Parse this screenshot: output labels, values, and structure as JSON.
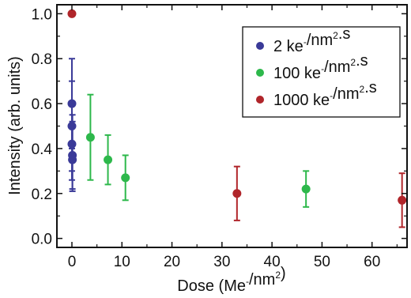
{
  "chart_data": {
    "type": "scatter",
    "xlabel": "Dose (Me⁻/nm²)",
    "ylabel": "Intensity (arb. units)",
    "xlim": [
      -3,
      67
    ],
    "ylim": [
      -0.04,
      1.04
    ],
    "xticks": [
      "0",
      "10",
      "20",
      "30",
      "40",
      "50",
      "60"
    ],
    "yticks": [
      "0.0",
      "0.2",
      "0.4",
      "0.6",
      "0.8",
      "1.0"
    ],
    "xtick_values": [
      0,
      10,
      20,
      30,
      40,
      50,
      60
    ],
    "ytick_values": [
      0.0,
      0.2,
      0.4,
      0.6,
      0.8,
      1.0
    ],
    "grid": false,
    "legend_position": "top-right",
    "series": [
      {
        "name": "2 ke⁻/nm².s",
        "color": "#3a3a98",
        "points": [
          {
            "x": 0.0,
            "y": 0.6,
            "err_low": 0.4,
            "err_high": 0.8
          },
          {
            "x": 0.0,
            "y": 0.5,
            "err_low": 0.3,
            "err_high": 0.7
          },
          {
            "x": 0.0,
            "y": 0.42,
            "err_low": 0.26,
            "err_high": 0.6
          },
          {
            "x": 0.1,
            "y": 0.37,
            "err_low": 0.22,
            "err_high": 0.55
          },
          {
            "x": 0.1,
            "y": 0.35,
            "err_low": 0.21,
            "err_high": 0.52
          }
        ]
      },
      {
        "name": "100 ke⁻/nm².s",
        "color": "#2db84b",
        "points": [
          {
            "x": 3.7,
            "y": 0.45,
            "err_low": 0.26,
            "err_high": 0.64
          },
          {
            "x": 7.2,
            "y": 0.35,
            "err_low": 0.24,
            "err_high": 0.46
          },
          {
            "x": 10.7,
            "y": 0.27,
            "err_low": 0.17,
            "err_high": 0.37
          },
          {
            "x": 46.8,
            "y": 0.22,
            "err_low": 0.14,
            "err_high": 0.3
          }
        ]
      },
      {
        "name": "1000 ke⁻/nm².s",
        "color": "#b0252a",
        "points": [
          {
            "x": 0.0,
            "y": 1.0,
            "err_low": 1.0,
            "err_high": 1.0
          },
          {
            "x": 33.0,
            "y": 0.2,
            "err_low": 0.08,
            "err_high": 0.32
          },
          {
            "x": 66.0,
            "y": 0.17,
            "err_low": 0.05,
            "err_high": 0.29
          }
        ]
      }
    ]
  }
}
